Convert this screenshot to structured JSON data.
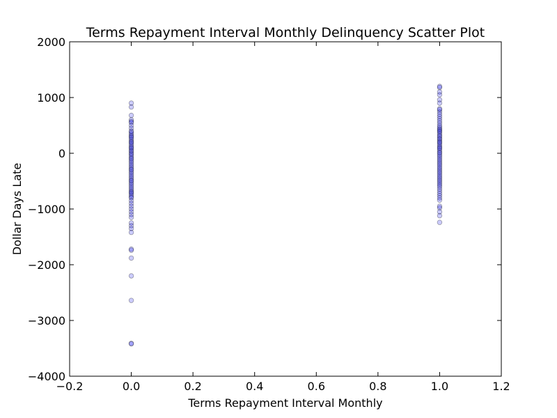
{
  "chart_data": {
    "type": "scatter",
    "title": "Terms Repayment Interval Monthly Delinquency Scatter Plot",
    "xlabel": "Terms Repayment Interval Monthly",
    "ylabel": "Dollar Days Late",
    "xlim": [
      -0.2,
      1.2
    ],
    "ylim": [
      -4000,
      2000
    ],
    "xticks": [
      -0.2,
      0.0,
      0.2,
      0.4,
      0.6,
      0.8,
      1.0,
      1.2
    ],
    "xtick_labels": [
      "−0.2",
      "0.0",
      "0.2",
      "0.4",
      "0.6",
      "0.8",
      "1.0",
      "1.2"
    ],
    "yticks": [
      2000,
      1000,
      0,
      -1000,
      -2000,
      -3000,
      -4000
    ],
    "ytick_labels": [
      "2000",
      "1000",
      "0",
      "−1000",
      "−2000",
      "−3000",
      "−4000"
    ],
    "grid": false,
    "marker_color": "#0000ff",
    "marker_alpha": 0.2,
    "series": [
      {
        "x": 0,
        "y": [
          900,
          830,
          680,
          600,
          570,
          550,
          500,
          450,
          400,
          380,
          350,
          320,
          300,
          280,
          250,
          220,
          200,
          180,
          150,
          120,
          100,
          80,
          50,
          30,
          0,
          -20,
          -50,
          -80,
          -100,
          -130,
          -160,
          -190,
          -220,
          -250,
          -280,
          -300,
          -330,
          -360,
          -390,
          -420,
          -450,
          -480,
          -500,
          -530,
          -560,
          -590,
          -620,
          -650,
          -680,
          -700,
          -720,
          -750,
          -780,
          -800,
          -850,
          -900,
          -950,
          -1000,
          -1050,
          -1100,
          -1150,
          -1250,
          -1300,
          -1350,
          -1420,
          -1720,
          -1740,
          -1880,
          -2200,
          -2640,
          -3410,
          -3420
        ]
      },
      {
        "x": 1,
        "y": [
          1200,
          1180,
          1100,
          1050,
          960,
          900,
          800,
          780,
          740,
          700,
          660,
          620,
          580,
          540,
          500,
          470,
          440,
          420,
          400,
          380,
          350,
          320,
          300,
          270,
          250,
          220,
          200,
          180,
          150,
          120,
          100,
          80,
          50,
          20,
          0,
          -30,
          -60,
          -90,
          -120,
          -150,
          -180,
          -210,
          -240,
          -270,
          -300,
          -330,
          -360,
          -390,
          -420,
          -450,
          -480,
          -510,
          -540,
          -570,
          -600,
          -640,
          -680,
          -720,
          -760,
          -800,
          -840,
          -950,
          -980,
          -1050,
          -1120,
          -1240
        ]
      }
    ]
  }
}
